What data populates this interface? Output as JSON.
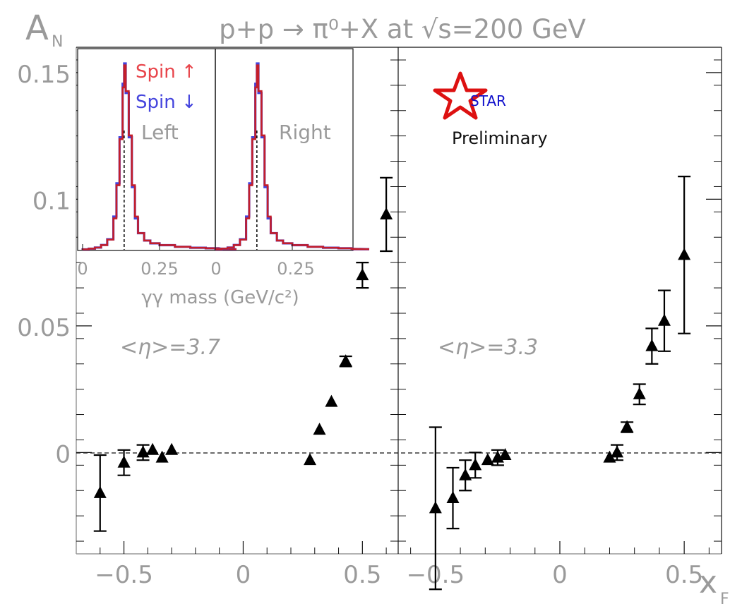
{
  "chart_data": {
    "type": "scatter",
    "title": "p+p → π⁰+X at √s=200 GeV",
    "ylabel": "A",
    "ylabel_sub": "N",
    "xlabel": "x",
    "xlabel_sub": "F",
    "ylim": [
      -0.04,
      0.16
    ],
    "grid": false,
    "yticks": [
      "0",
      "0.05",
      "0.1",
      "0.15"
    ],
    "zero_line": "dashed",
    "logo": {
      "text": "STAR",
      "note": "Preliminary",
      "colors": {
        "star": "#dd1111",
        "text": "#1111cc"
      }
    },
    "panels": [
      {
        "annotation": "<η>=3.7",
        "xlim": [
          -0.7,
          0.65
        ],
        "xticks": [
          "−0.5",
          "0",
          "0.5"
        ],
        "points": [
          {
            "x": -0.6,
            "y": -0.016,
            "yerr": 0.015
          },
          {
            "x": -0.5,
            "y": -0.004,
            "yerr": 0.005
          },
          {
            "x": -0.42,
            "y": 0.0,
            "yerr": 0.003
          },
          {
            "x": -0.38,
            "y": 0.001,
            "yerr": 0.0
          },
          {
            "x": -0.34,
            "y": -0.002,
            "yerr": 0.0
          },
          {
            "x": -0.3,
            "y": 0.001,
            "yerr": 0.0
          },
          {
            "x": 0.28,
            "y": -0.003,
            "yerr": 0.0
          },
          {
            "x": 0.32,
            "y": 0.009,
            "yerr": 0.0
          },
          {
            "x": 0.37,
            "y": 0.02,
            "yerr": 0.0
          },
          {
            "x": 0.43,
            "y": 0.036,
            "yerr": 0.002
          },
          {
            "x": 0.5,
            "y": 0.07,
            "yerr": 0.005
          },
          {
            "x": 0.6,
            "y": 0.094,
            "yerr": 0.0145
          }
        ]
      },
      {
        "annotation": "<η>=3.3",
        "xlim": [
          -0.65,
          0.65
        ],
        "xticks": [
          "−0.5",
          "0",
          "0.5"
        ],
        "points": [
          {
            "x": -0.5,
            "y": -0.022,
            "yerr": 0.032
          },
          {
            "x": -0.43,
            "y": -0.018,
            "yerr": 0.012
          },
          {
            "x": -0.38,
            "y": -0.009,
            "yerr": 0.006
          },
          {
            "x": -0.34,
            "y": -0.005,
            "yerr": 0.005
          },
          {
            "x": -0.29,
            "y": -0.003,
            "yerr": 0.0
          },
          {
            "x": -0.25,
            "y": -0.002,
            "yerr": 0.003
          },
          {
            "x": -0.22,
            "y": -0.001,
            "yerr": 0.0
          },
          {
            "x": 0.2,
            "y": -0.002,
            "yerr": 0.0
          },
          {
            "x": 0.23,
            "y": 0.0,
            "yerr": 0.003
          },
          {
            "x": 0.27,
            "y": 0.01,
            "yerr": 0.002
          },
          {
            "x": 0.32,
            "y": 0.023,
            "yerr": 0.004
          },
          {
            "x": 0.37,
            "y": 0.042,
            "yerr": 0.007
          },
          {
            "x": 0.42,
            "y": 0.052,
            "yerr": 0.012
          },
          {
            "x": 0.5,
            "y": 0.078,
            "yerr": 0.031
          }
        ]
      }
    ],
    "inset": {
      "type": "line",
      "xlabel": "γγ mass (GeV/c²)",
      "legend": [
        {
          "name": "Spin ↑",
          "color": "#e8444a"
        },
        {
          "name": "Spin ↓",
          "color": "#4444dd"
        }
      ],
      "panels": [
        {
          "label": "Left",
          "xticks": [
            "0",
            "0.25"
          ]
        },
        {
          "label": "Right",
          "xticks": [
            "0",
            "0.25"
          ]
        }
      ],
      "x": [
        0.0,
        0.02,
        0.04,
        0.06,
        0.08,
        0.1,
        0.11,
        0.12,
        0.13,
        0.135,
        0.14,
        0.15,
        0.16,
        0.17,
        0.18,
        0.2,
        0.22,
        0.25,
        0.3,
        0.35,
        0.4,
        0.45,
        0.5
      ],
      "series": [
        {
          "name": "Spin ↑",
          "values": [
            0.2,
            0.6,
            1.2,
            2.5,
            5.5,
            17,
            35,
            60,
            88,
            100,
            86,
            62,
            35,
            18,
            9,
            5,
            3.5,
            2.5,
            1.6,
            1.1,
            0.8,
            0.5,
            0.3
          ]
        },
        {
          "name": "Spin ↓",
          "values": [
            0.2,
            0.6,
            1.2,
            2.6,
            5.7,
            18,
            36,
            61,
            90,
            101,
            85,
            61,
            34,
            17,
            9,
            5,
            3.5,
            2.5,
            1.6,
            1.1,
            0.8,
            0.5,
            0.3
          ]
        }
      ]
    }
  }
}
